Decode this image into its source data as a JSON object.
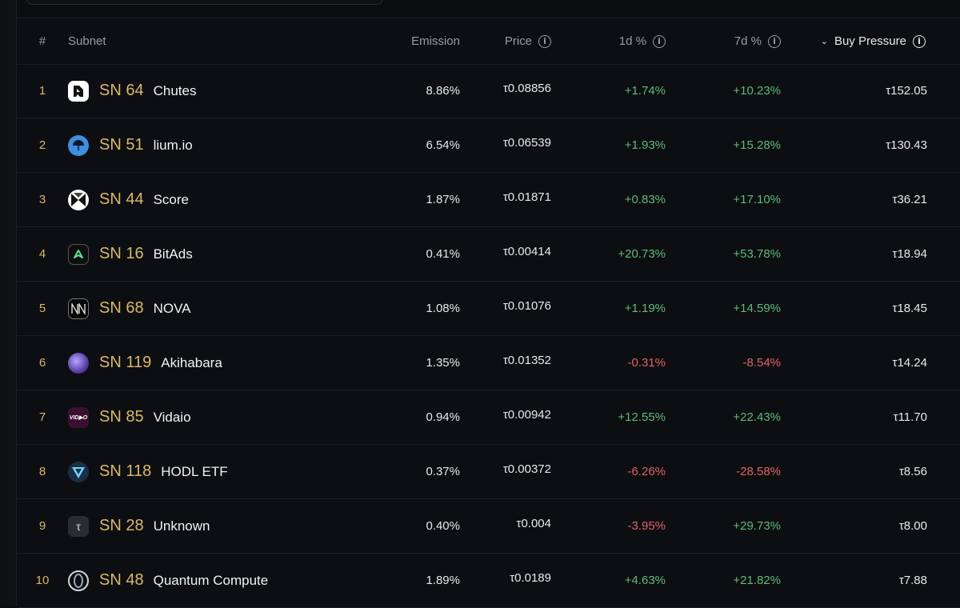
{
  "headers": {
    "rank": "#",
    "subnet": "Subnet",
    "emission": "Emission",
    "price": "Price",
    "d1": "1d %",
    "d7": "7d %",
    "buy_pressure": "Buy Pressure"
  },
  "sort": {
    "column": "buy_pressure",
    "direction": "desc"
  },
  "colors": {
    "accent": "#d8b86a",
    "positive": "#5dbb7a",
    "negative": "#e0636a",
    "background": "#0b0c0e"
  },
  "rows": [
    {
      "rank": "1",
      "sn": "SN 64",
      "name": "Chutes",
      "emission": "8.86%",
      "price": "τ0.08856",
      "d1": "+1.74%",
      "d7": "+10.23%",
      "buy_pressure": "τ152.05",
      "logo": "chutes-logo"
    },
    {
      "rank": "2",
      "sn": "SN 51",
      "name": "lium.io",
      "emission": "6.54%",
      "price": "τ0.06539",
      "d1": "+1.93%",
      "d7": "+15.28%",
      "buy_pressure": "τ130.43",
      "logo": "lium-logo"
    },
    {
      "rank": "3",
      "sn": "SN 44",
      "name": "Score",
      "emission": "1.87%",
      "price": "τ0.01871",
      "d1": "+0.83%",
      "d7": "+17.10%",
      "buy_pressure": "τ36.21",
      "logo": "score-logo"
    },
    {
      "rank": "4",
      "sn": "SN 16",
      "name": "BitAds",
      "emission": "0.41%",
      "price": "τ0.00414",
      "d1": "+20.73%",
      "d7": "+53.78%",
      "buy_pressure": "τ18.94",
      "logo": "bitads-logo"
    },
    {
      "rank": "5",
      "sn": "SN 68",
      "name": "NOVA",
      "emission": "1.08%",
      "price": "τ0.01076",
      "d1": "+1.19%",
      "d7": "+14.59%",
      "buy_pressure": "τ18.45",
      "logo": "nova-logo"
    },
    {
      "rank": "6",
      "sn": "SN 119",
      "name": "Akihabara",
      "emission": "1.35%",
      "price": "τ0.01352",
      "d1": "-0.31%",
      "d7": "-8.54%",
      "buy_pressure": "τ14.24",
      "logo": "akihabara-logo"
    },
    {
      "rank": "7",
      "sn": "SN 85",
      "name": "Vidaio",
      "emission": "0.94%",
      "price": "τ0.00942",
      "d1": "+12.55%",
      "d7": "+22.43%",
      "buy_pressure": "τ11.70",
      "logo": "vidaio-logo"
    },
    {
      "rank": "8",
      "sn": "SN 118",
      "name": "HODL ETF",
      "emission": "0.37%",
      "price": "τ0.00372",
      "d1": "-6.26%",
      "d7": "-28.58%",
      "buy_pressure": "τ8.56",
      "logo": "hodl-logo"
    },
    {
      "rank": "9",
      "sn": "SN 28",
      "name": "Unknown",
      "emission": "0.40%",
      "price": "τ0.004",
      "d1": "-3.95%",
      "d7": "+29.73%",
      "buy_pressure": "τ8.00",
      "logo": "tau-logo"
    },
    {
      "rank": "10",
      "sn": "SN 48",
      "name": "Quantum Compute",
      "emission": "1.89%",
      "price": "τ0.0189",
      "d1": "+4.63%",
      "d7": "+21.82%",
      "buy_pressure": "τ7.88",
      "logo": "quantum-logo"
    }
  ]
}
